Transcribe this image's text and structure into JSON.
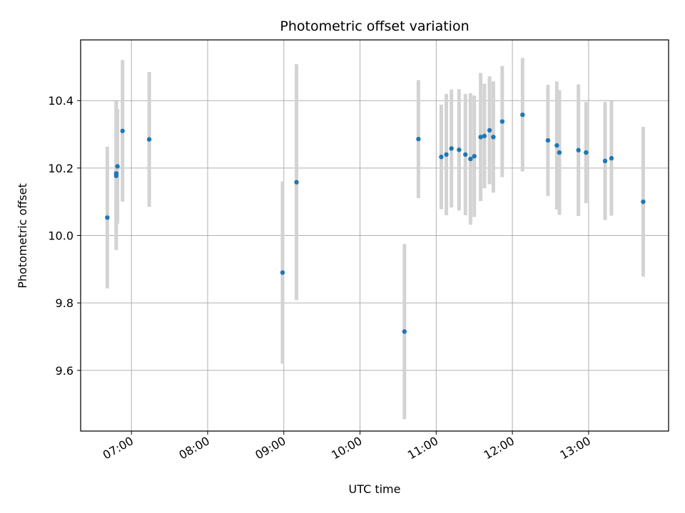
{
  "chart_data": {
    "type": "scatter",
    "title": "Photometric offset variation",
    "xlabel": "UTC time",
    "ylabel": "Photometric offset",
    "xlim": [
      "06:20",
      "14:03"
    ],
    "ylim": [
      9.42,
      10.58
    ],
    "grid": true,
    "x_ticks": [
      "07:00",
      "08:00",
      "09:00",
      "10:00",
      "11:00",
      "12:00",
      "13:00"
    ],
    "y_ticks": [
      "9.6",
      "9.8",
      "10.0",
      "10.2",
      "10.4"
    ],
    "colors": {
      "point": "#1f77b4",
      "errorbar": "#d3d3d3",
      "grid": "#b0b0b0"
    },
    "points": [
      {
        "x": "06:41",
        "y": 10.053,
        "err": 0.21
      },
      {
        "x": "06:48",
        "y": 10.184,
        "err": 0.215
      },
      {
        "x": "06:48",
        "y": 10.177,
        "err": 0.22
      },
      {
        "x": "06:49",
        "y": 10.205,
        "err": 0.17
      },
      {
        "x": "06:53",
        "y": 10.31,
        "err": 0.21
      },
      {
        "x": "07:14",
        "y": 10.285,
        "err": 0.2
      },
      {
        "x": "08:59",
        "y": 9.89,
        "err": 0.27
      },
      {
        "x": "09:10",
        "y": 10.158,
        "err": 0.35
      },
      {
        "x": "10:35",
        "y": 9.715,
        "err": 0.26
      },
      {
        "x": "10:46",
        "y": 10.286,
        "err": 0.175
      },
      {
        "x": "11:04",
        "y": 10.233,
        "err": 0.155
      },
      {
        "x": "11:08",
        "y": 10.24,
        "err": 0.18
      },
      {
        "x": "11:12",
        "y": 10.258,
        "err": 0.175
      },
      {
        "x": "11:18",
        "y": 10.254,
        "err": 0.18
      },
      {
        "x": "11:23",
        "y": 10.24,
        "err": 0.18
      },
      {
        "x": "11:27",
        "y": 10.227,
        "err": 0.195
      },
      {
        "x": "11:30",
        "y": 10.235,
        "err": 0.18
      },
      {
        "x": "11:35",
        "y": 10.292,
        "err": 0.19
      },
      {
        "x": "11:38",
        "y": 10.295,
        "err": 0.155
      },
      {
        "x": "11:42",
        "y": 10.312,
        "err": 0.16
      },
      {
        "x": "11:45",
        "y": 10.292,
        "err": 0.165
      },
      {
        "x": "11:52",
        "y": 10.338,
        "err": 0.165
      },
      {
        "x": "12:08",
        "y": 10.358,
        "err": 0.168
      },
      {
        "x": "12:28",
        "y": 10.282,
        "err": 0.165
      },
      {
        "x": "12:35",
        "y": 10.267,
        "err": 0.19
      },
      {
        "x": "12:37",
        "y": 10.246,
        "err": 0.185
      },
      {
        "x": "12:52",
        "y": 10.253,
        "err": 0.195
      },
      {
        "x": "12:58",
        "y": 10.246,
        "err": 0.15
      },
      {
        "x": "13:13",
        "y": 10.221,
        "err": 0.175
      },
      {
        "x": "13:18",
        "y": 10.229,
        "err": 0.17
      },
      {
        "x": "13:43",
        "y": 10.1,
        "err": 0.222
      }
    ]
  }
}
